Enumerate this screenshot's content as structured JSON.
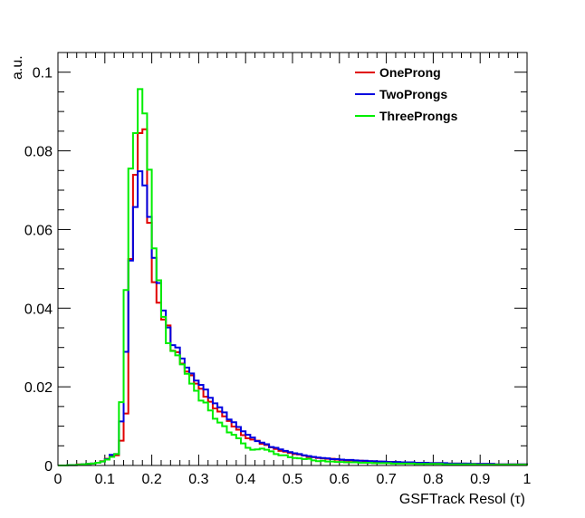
{
  "chart_data": {
    "type": "line",
    "title": "",
    "xlabel": "GSFTrack Resol (τ)",
    "ylabel": "a.u.",
    "xlim": [
      0,
      1
    ],
    "ylim": [
      0,
      0.105
    ],
    "x_ticks": [
      "0",
      "0.1",
      "0.2",
      "0.3",
      "0.4",
      "0.5",
      "0.6",
      "0.7",
      "0.8",
      "0.9",
      "1"
    ],
    "y_ticks": [
      "0",
      "0.02",
      "0.04",
      "0.06",
      "0.08",
      "0.1"
    ],
    "bin_width": 0.01,
    "legend_position": "top-right",
    "series": [
      {
        "name": "OneProng",
        "color": "#e00000",
        "values": [
          0,
          0,
          0.0001,
          0.0001,
          0.0003,
          0.0003,
          0.0004,
          0.0005,
          0.0007,
          0.0011,
          0.0017,
          0.0025,
          0.0026,
          0.0063,
          0.0132,
          0.0525,
          0.0739,
          0.0845,
          0.0855,
          0.0617,
          0.0466,
          0.0414,
          0.0371,
          0.0356,
          0.0292,
          0.0288,
          0.0259,
          0.0239,
          0.0229,
          0.0208,
          0.0195,
          0.0175,
          0.0162,
          0.0145,
          0.0137,
          0.0125,
          0.0113,
          0.0099,
          0.0091,
          0.0077,
          0.0069,
          0.0066,
          0.0063,
          0.0055,
          0.0052,
          0.0046,
          0.0042,
          0.0037,
          0.0035,
          0.0032,
          0.0029,
          0.0028,
          0.0025,
          0.0022,
          0.0021,
          0.0019,
          0.0018,
          0.0017,
          0.0017,
          0.0015,
          0.0014,
          0.0013,
          0.0013,
          0.0012,
          0.0012,
          0.0011,
          0.0011,
          0.001,
          0.001,
          0.0009,
          0.0009,
          0.0009,
          0.0008,
          0.0008,
          0.0008,
          0.0007,
          0.0007,
          0.0007,
          0.0006,
          0.0006,
          0.0006,
          0.0006,
          0.0005,
          0.0005,
          0.0005,
          0.0005,
          0.0005,
          0.0004,
          0.0004,
          0.0004,
          0.0004,
          0.0004,
          0.0004,
          0.0003,
          0.0003,
          0.0003,
          0.0003,
          0.0003,
          0.0003,
          0.0003
        ]
      },
      {
        "name": "TwoProngs",
        "color": "#0000e0",
        "values": [
          0,
          0,
          0.0001,
          0.0001,
          0.0002,
          0.0003,
          0.0004,
          0.0005,
          0.0007,
          0.001,
          0.0016,
          0.0027,
          0.0029,
          0.0112,
          0.0289,
          0.0521,
          0.0657,
          0.0748,
          0.0712,
          0.0632,
          0.0528,
          0.0464,
          0.0394,
          0.0351,
          0.0306,
          0.03,
          0.0272,
          0.0249,
          0.0234,
          0.0216,
          0.0205,
          0.0193,
          0.0172,
          0.0158,
          0.0148,
          0.0135,
          0.0117,
          0.011,
          0.0098,
          0.0087,
          0.0078,
          0.0071,
          0.0062,
          0.0058,
          0.0054,
          0.0047,
          0.0045,
          0.0041,
          0.0037,
          0.0034,
          0.0031,
          0.0029,
          0.0026,
          0.0024,
          0.0022,
          0.002,
          0.0019,
          0.0018,
          0.0016,
          0.0016,
          0.0015,
          0.0014,
          0.0014,
          0.0013,
          0.0012,
          0.0012,
          0.0011,
          0.0011,
          0.001,
          0.001,
          0.0009,
          0.0009,
          0.0009,
          0.0008,
          0.0008,
          0.0008,
          0.0007,
          0.0007,
          0.0007,
          0.0006,
          0.0006,
          0.0006,
          0.0006,
          0.0005,
          0.0005,
          0.0005,
          0.0005,
          0.0005,
          0.0004,
          0.0004,
          0.0004,
          0.0004,
          0.0004,
          0.0003,
          0.0003,
          0.0003,
          0.0003,
          0.0003,
          0.0003,
          0.0003
        ]
      },
      {
        "name": "ThreeProngs",
        "color": "#00ee00",
        "values": [
          0,
          0,
          0.0001,
          0.0001,
          0.0002,
          0.0003,
          0.0004,
          0.0005,
          0.0007,
          0.001,
          0.0015,
          0.0022,
          0.0029,
          0.0161,
          0.0446,
          0.0755,
          0.0845,
          0.0957,
          0.0895,
          0.0752,
          0.0552,
          0.0471,
          0.0378,
          0.0311,
          0.0291,
          0.028,
          0.0257,
          0.0233,
          0.0208,
          0.019,
          0.0165,
          0.016,
          0.014,
          0.0119,
          0.0109,
          0.01,
          0.0084,
          0.0078,
          0.0069,
          0.0056,
          0.0045,
          0.004,
          0.0041,
          0.0043,
          0.004,
          0.0036,
          0.0029,
          0.0026,
          0.0026,
          0.0021,
          0.0019,
          0.0018,
          0.0016,
          0.0017,
          0.0013,
          0.0011,
          0.0012,
          0.001,
          0.001,
          0.0009,
          0.0009,
          0.0008,
          0.0008,
          0.0008,
          0.0007,
          0.0007,
          0.0007,
          0.0006,
          0.0006,
          0.0006,
          0.0006,
          0.0005,
          0.0005,
          0.0005,
          0.0005,
          0.0005,
          0.0004,
          0.0004,
          0.0004,
          0.0004,
          0.0004,
          0.0004,
          0.0003,
          0.0003,
          0.0003,
          0.0003,
          0.0003,
          0.0003,
          0.0003,
          0.0002,
          0.0002,
          0.0002,
          0.0002,
          0.0002,
          0.0002,
          0.0002,
          0.0002,
          0.0002,
          0.0002,
          0.0002
        ]
      }
    ]
  }
}
